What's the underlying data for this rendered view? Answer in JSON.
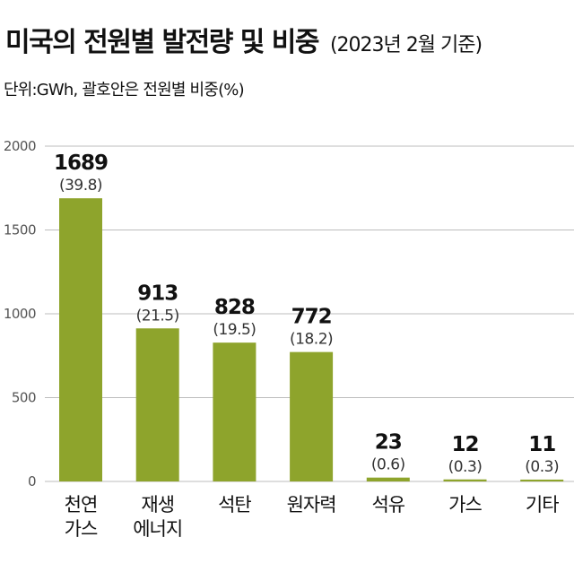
{
  "title": "미국의 전원별 발전량 및 비중",
  "subtitle": "(2023년 2월 기준)",
  "unit_label": "단위:GWh, 괄호안은 전원별 비중(%)",
  "colors": {
    "bar": "#8ea42c",
    "grid": "#bdbdbd",
    "text": "#111111",
    "tick": "#555555"
  },
  "chart_data": {
    "type": "bar",
    "title": "미국의 전원별 발전량 및 비중",
    "subtitle": "(2023년 2월 기준)",
    "ylabel": "",
    "ylim": [
      0,
      2000
    ],
    "yticks": [
      0,
      500,
      1000,
      1500,
      2000
    ],
    "ytick_labels": [
      "0",
      "500",
      "1000",
      "1500",
      "2000"
    ],
    "grid": true,
    "categories": [
      [
        "천연",
        "가스"
      ],
      [
        "재생",
        "에너지"
      ],
      [
        "석탄"
      ],
      [
        "원자력"
      ],
      [
        "석유"
      ],
      [
        "가스"
      ],
      [
        "기타"
      ]
    ],
    "values": [
      1689,
      913,
      828,
      772,
      23,
      12,
      11
    ],
    "value_labels": [
      "1689",
      "913",
      "828",
      "772",
      "23",
      "12",
      "11"
    ],
    "share_labels": [
      "(39.8)",
      "(21.5)",
      "(19.5)",
      "(18.2)",
      "(0.6)",
      "(0.3)",
      "(0.3)"
    ]
  }
}
